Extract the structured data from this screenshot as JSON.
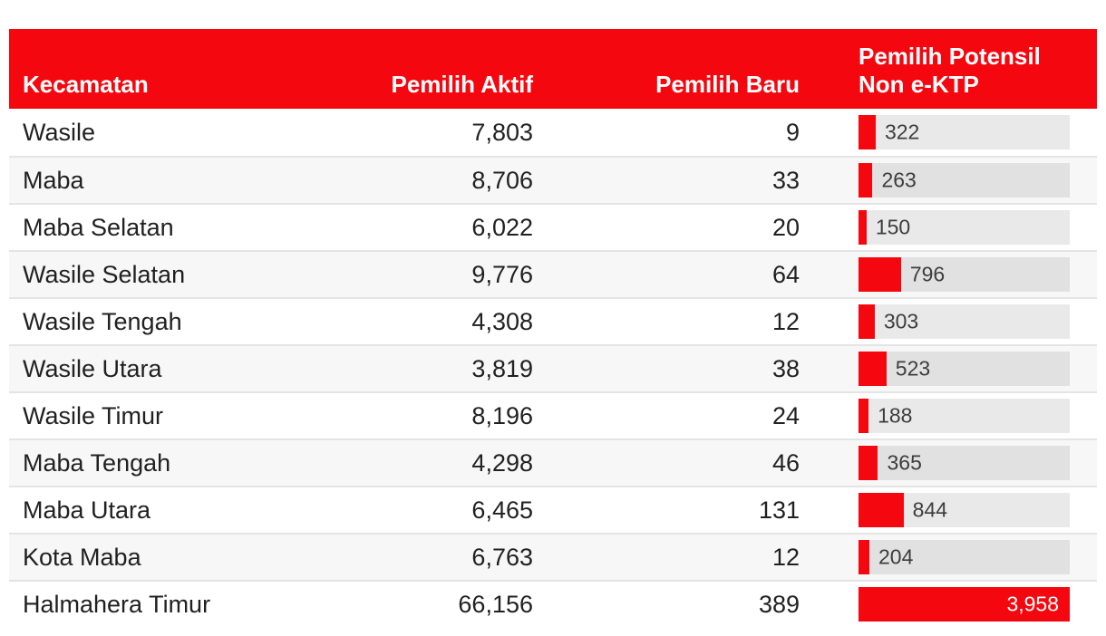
{
  "colors": {
    "accent_red": "#f5070f",
    "row_alt": "#f7f7f7",
    "bar_track": "rgba(0,0,0,0.085)",
    "body_text": "#212121",
    "bar_label_text": "#3d3d3d",
    "separator": "#e4e4e4",
    "header_text": "#ffffff",
    "total_bar_label_text": "#ffffff"
  },
  "table": {
    "header": {
      "kecamatan": "Kecamatan",
      "pemilih_aktif": "Pemilih Aktif",
      "pemilih_baru": "Pemilih Baru",
      "pemilih_potensil_line1": "Pemilih Potensil",
      "pemilih_potensil_line2": "Non e-KTP"
    },
    "bar_max": 3958,
    "rows": [
      {
        "kecamatan": "Wasile",
        "pemilih_aktif": "7,803",
        "pemilih_baru": "9",
        "bar_label": "322",
        "bar_value": 322
      },
      {
        "kecamatan": "Maba",
        "pemilih_aktif": "8,706",
        "pemilih_baru": "33",
        "bar_label": "263",
        "bar_value": 263
      },
      {
        "kecamatan": "Maba Selatan",
        "pemilih_aktif": "6,022",
        "pemilih_baru": "20",
        "bar_label": "150",
        "bar_value": 150
      },
      {
        "kecamatan": "Wasile Selatan",
        "pemilih_aktif": "9,776",
        "pemilih_baru": "64",
        "bar_label": "796",
        "bar_value": 796
      },
      {
        "kecamatan": "Wasile Tengah",
        "pemilih_aktif": "4,308",
        "pemilih_baru": "12",
        "bar_label": "303",
        "bar_value": 303
      },
      {
        "kecamatan": "Wasile Utara",
        "pemilih_aktif": "3,819",
        "pemilih_baru": "38",
        "bar_label": "523",
        "bar_value": 523
      },
      {
        "kecamatan": "Wasile Timur",
        "pemilih_aktif": "8,196",
        "pemilih_baru": "24",
        "bar_label": "188",
        "bar_value": 188
      },
      {
        "kecamatan": "Maba Tengah",
        "pemilih_aktif": "4,298",
        "pemilih_baru": "46",
        "bar_label": "365",
        "bar_value": 365
      },
      {
        "kecamatan": "Maba Utara",
        "pemilih_aktif": "6,465",
        "pemilih_baru": "131",
        "bar_label": "844",
        "bar_value": 844
      },
      {
        "kecamatan": "Kota Maba",
        "pemilih_aktif": "6,763",
        "pemilih_baru": "12",
        "bar_label": "204",
        "bar_value": 204
      },
      {
        "kecamatan": "Halmahera Timur",
        "pemilih_aktif": "66,156",
        "pemilih_baru": "389",
        "bar_label": "3,958",
        "bar_value": 3958,
        "total": true
      }
    ]
  },
  "chart_data": {
    "type": "table",
    "title": "",
    "columns": [
      "Kecamatan",
      "Pemilih Aktif",
      "Pemilih Baru",
      "Pemilih Potensil Non e-KTP"
    ],
    "rows": [
      [
        "Wasile",
        7803,
        9,
        322
      ],
      [
        "Maba",
        8706,
        33,
        263
      ],
      [
        "Maba Selatan",
        6022,
        20,
        150
      ],
      [
        "Wasile Selatan",
        9776,
        64,
        796
      ],
      [
        "Wasile Tengah",
        4308,
        12,
        303
      ],
      [
        "Wasile Utara",
        3819,
        38,
        523
      ],
      [
        "Wasile Timur",
        8196,
        24,
        188
      ],
      [
        "Maba Tengah",
        4298,
        46,
        365
      ],
      [
        "Maba Utara",
        6465,
        131,
        844
      ],
      [
        "Kota Maba",
        6763,
        12,
        204
      ],
      [
        "Halmahera Timur",
        66156,
        389,
        3958
      ]
    ],
    "total_row": "Halmahera Timur",
    "bar_column": "Pemilih Potensil Non e-KTP",
    "bar_scale_max": 3958,
    "bar_color": "#f5070f",
    "layout": "bar column rendered as red horizontal bars on gray track, value label right of bar; total row bar is full-width with white label inside"
  }
}
